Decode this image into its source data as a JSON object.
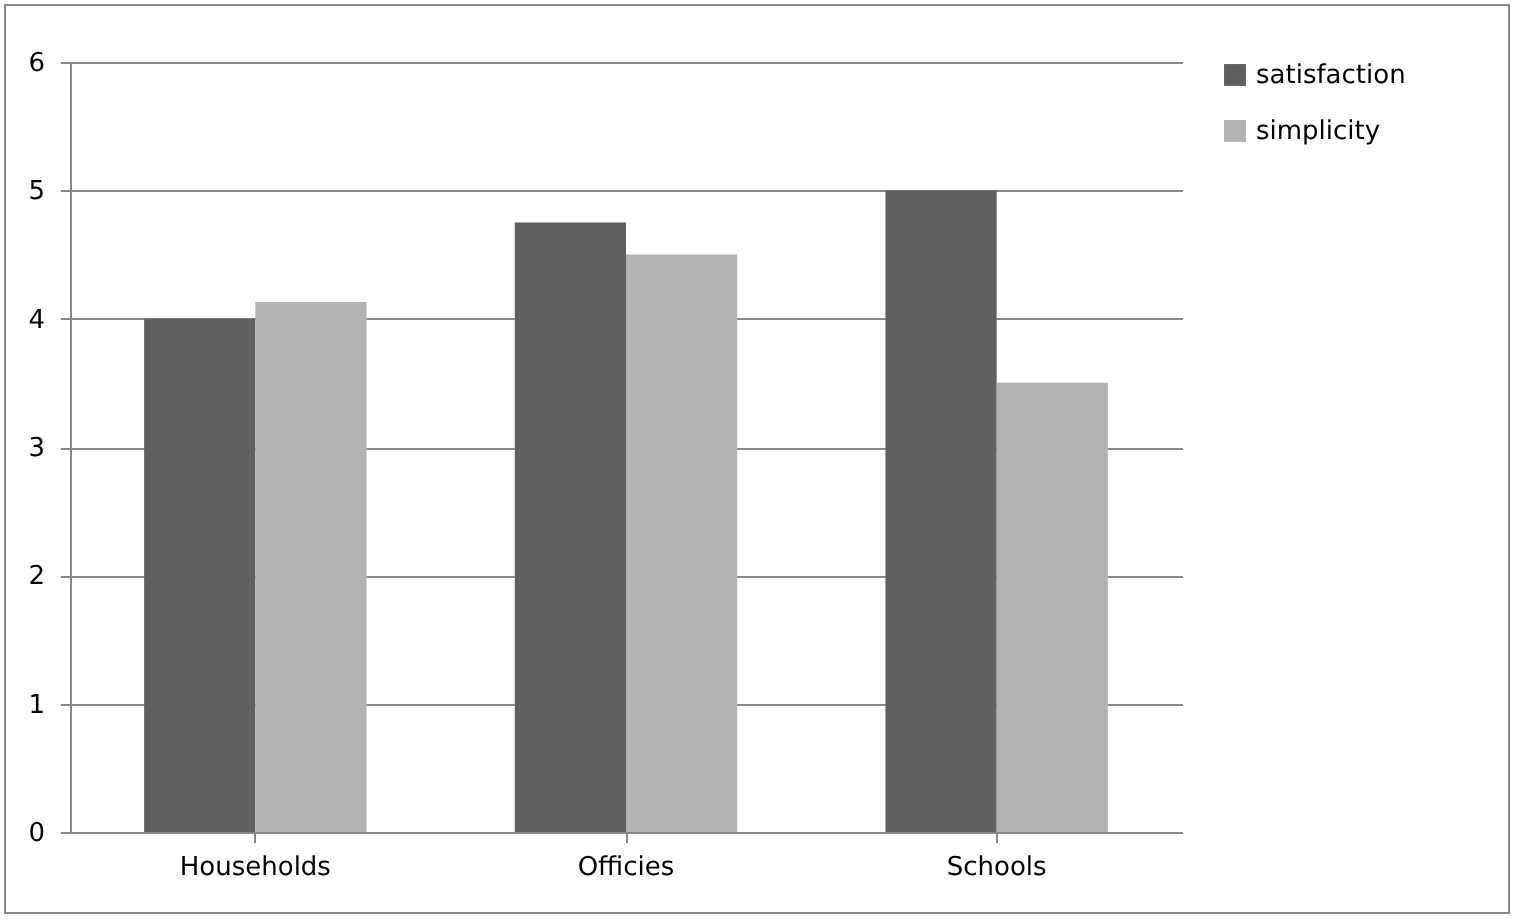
{
  "chart_data": {
    "type": "bar",
    "categories": [
      "Households",
      "Officies",
      "Schools"
    ],
    "series": [
      {
        "name": "satisfaction",
        "color": "#606060",
        "values": [
          4,
          4.75,
          5
        ]
      },
      {
        "name": "simplicity",
        "color": "#b2b2b2",
        "values": [
          4.13,
          4.5,
          3.5
        ]
      }
    ],
    "ylim": [
      0,
      6
    ],
    "yticks": [
      0,
      1,
      2,
      3,
      4,
      5,
      6
    ],
    "grid": "y",
    "legend": "right"
  }
}
